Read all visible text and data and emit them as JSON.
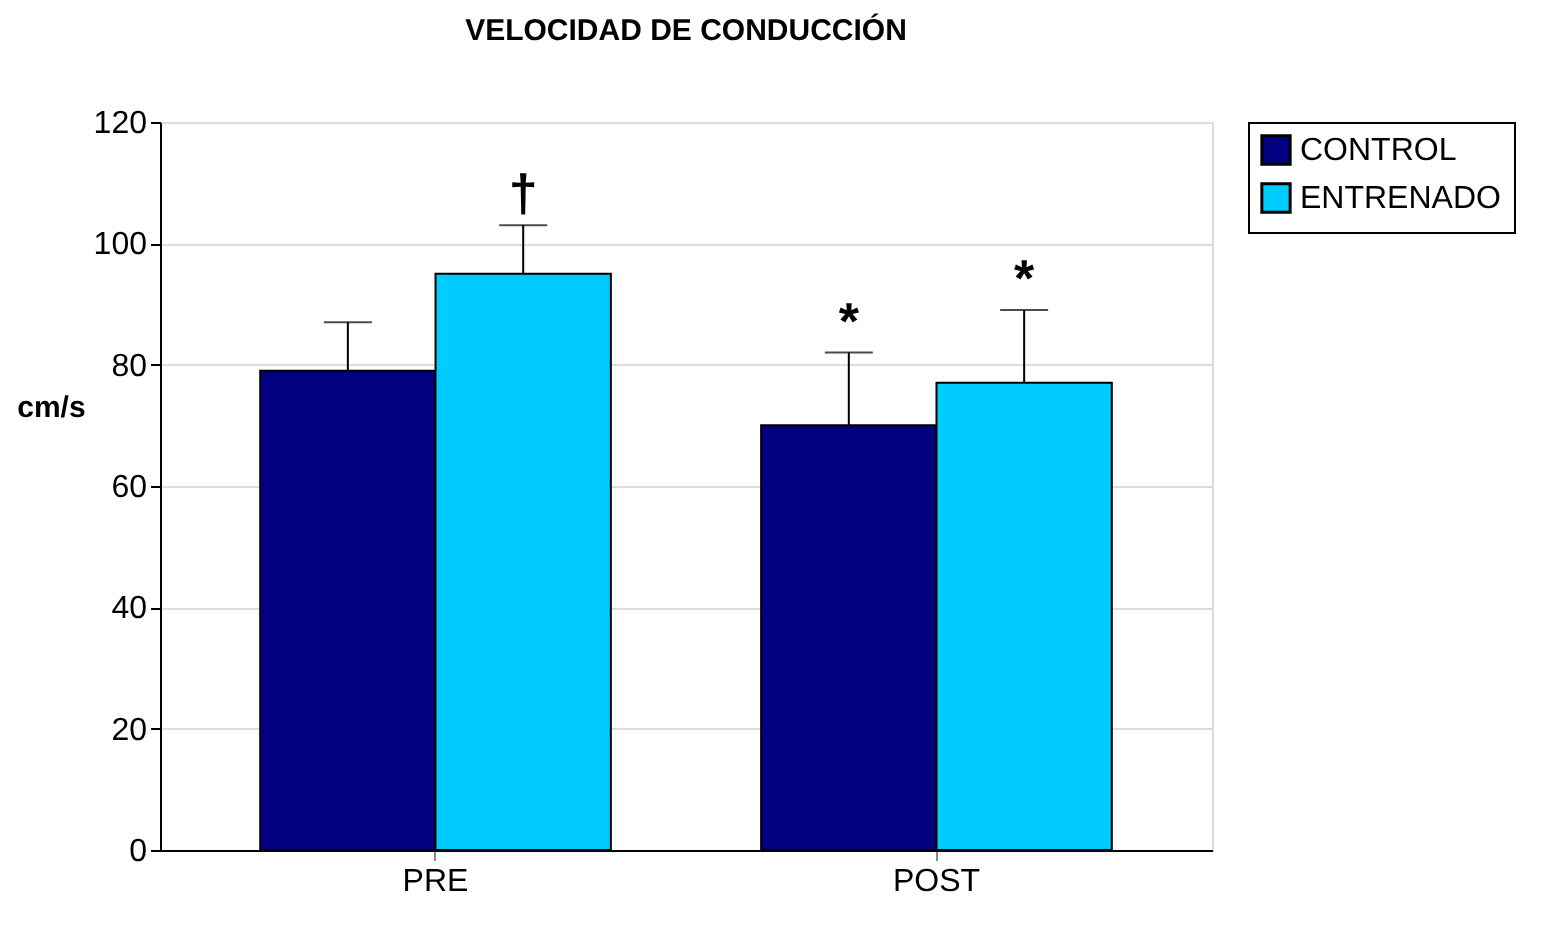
{
  "chart_data": {
    "type": "bar",
    "title": "VELOCIDAD DE CONDUCCIÓN",
    "ylabel": "cm/s",
    "categories": [
      "PRE",
      "POST"
    ],
    "series": [
      {
        "name": "CONTROL",
        "color": "#000080",
        "values": [
          79,
          70
        ],
        "errors": [
          [
            79,
            87
          ],
          [
            70,
            82
          ]
        ]
      },
      {
        "name": "ENTRENADO",
        "color": "#00ccff",
        "values": [
          95,
          77
        ],
        "errors": [
          [
            95,
            103
          ],
          [
            77,
            89
          ]
        ]
      }
    ],
    "ylim": [
      0,
      120
    ],
    "yticks": [
      0,
      20,
      40,
      60,
      80,
      100,
      120
    ],
    "grid": "y",
    "legend": "right",
    "annotations": [
      "†",
      "*",
      "*"
    ]
  }
}
